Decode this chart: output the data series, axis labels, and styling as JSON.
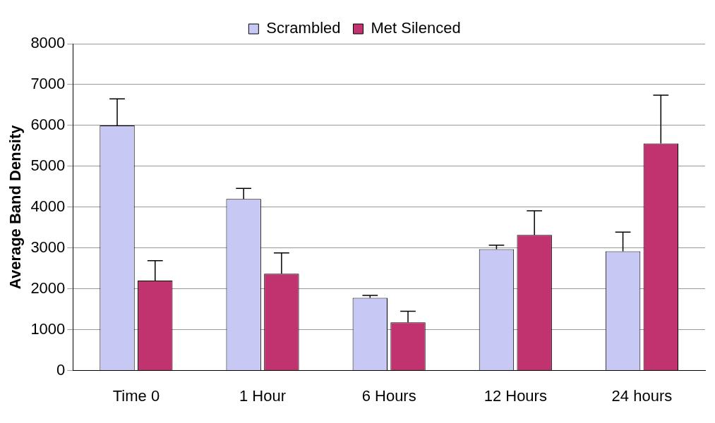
{
  "chart_data": {
    "type": "bar",
    "ylabel": "Average Band Density",
    "categories": [
      "Time 0",
      "1 Hour",
      "6 Hours",
      "12 Hours",
      "24 hours"
    ],
    "series": [
      {
        "name": "Scrambled",
        "color": "#c8c8f5",
        "values": [
          6000,
          4200,
          1780,
          2970,
          2920
        ],
        "errors": [
          [
            6000,
            6650
          ],
          [
            4200,
            4460
          ],
          [
            1780,
            1840
          ],
          [
            2970,
            3070
          ],
          [
            2920,
            3390
          ]
        ]
      },
      {
        "name": "Met Silenced",
        "color": "#c0336e",
        "values": [
          2200,
          2370,
          1180,
          3320,
          5560
        ],
        "errors": [
          [
            2200,
            2690
          ],
          [
            2370,
            2880
          ],
          [
            1180,
            1450
          ],
          [
            3320,
            3910
          ],
          [
            5560,
            6740
          ]
        ]
      }
    ],
    "ylim": [
      0,
      8000
    ],
    "yticks": [
      0,
      1000,
      2000,
      3000,
      4000,
      5000,
      6000,
      7000,
      8000
    ],
    "grid": "y",
    "legend": "top"
  }
}
